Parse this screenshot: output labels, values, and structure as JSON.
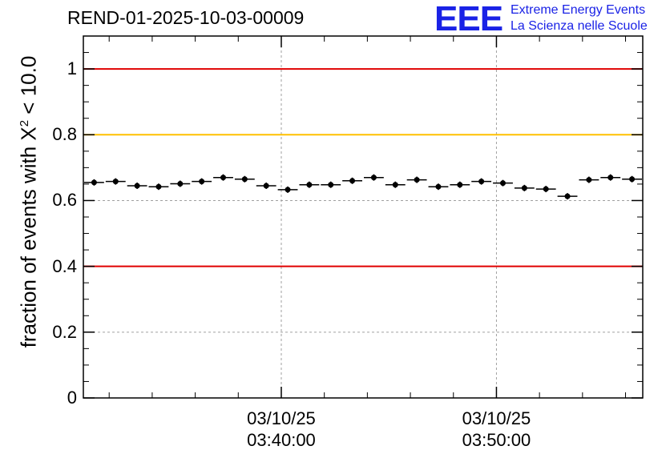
{
  "title": "REND-01-2025-10-03-00009",
  "logo": {
    "letters": "EEE",
    "line1": "Extreme Energy Events",
    "line2": "La Scienza nelle Scuole"
  },
  "colors": {
    "accent_blue": "#1a22e6",
    "red_line": "#e00000",
    "yellow_line": "#ffc000",
    "grid": "#a0a0a0"
  },
  "chart_data": {
    "type": "scatter",
    "title": "REND-01-2025-10-03-00009",
    "ylabel_prefix": "fraction of events with ",
    "ylabel_symbol": "X",
    "ylabel_exponent": "2",
    "ylabel_suffix": " < 10.0",
    "ylim": [
      0,
      1.1
    ],
    "xlim_minutes": [
      0,
      26
    ],
    "grid": true,
    "y_ticks": [
      {
        "value": 0,
        "label": "0"
      },
      {
        "value": 0.2,
        "label": "0.2"
      },
      {
        "value": 0.4,
        "label": "0.4"
      },
      {
        "value": 0.6,
        "label": "0.6"
      },
      {
        "value": 0.8,
        "label": "0.8"
      },
      {
        "value": 1,
        "label": "1"
      }
    ],
    "x_ticks": [
      {
        "minute": 9.2,
        "date": "03/10/25",
        "time": "03:40:00"
      },
      {
        "minute": 19.2,
        "date": "03/10/25",
        "time": "03:50:00"
      }
    ],
    "reference_lines": [
      {
        "y": 1.0,
        "color": "#e00000"
      },
      {
        "y": 0.8,
        "color": "#ffc000"
      },
      {
        "y": 0.4,
        "color": "#e00000"
      }
    ],
    "bin_width_minutes": 1,
    "points": [
      {
        "x": 0.5,
        "y": 0.655
      },
      {
        "x": 1.5,
        "y": 0.658
      },
      {
        "x": 2.5,
        "y": 0.645
      },
      {
        "x": 3.5,
        "y": 0.642
      },
      {
        "x": 4.5,
        "y": 0.651
      },
      {
        "x": 5.5,
        "y": 0.658
      },
      {
        "x": 6.5,
        "y": 0.67
      },
      {
        "x": 7.5,
        "y": 0.665
      },
      {
        "x": 8.5,
        "y": 0.645
      },
      {
        "x": 9.5,
        "y": 0.633
      },
      {
        "x": 10.5,
        "y": 0.648
      },
      {
        "x": 11.5,
        "y": 0.648
      },
      {
        "x": 12.5,
        "y": 0.66
      },
      {
        "x": 13.5,
        "y": 0.67
      },
      {
        "x": 14.5,
        "y": 0.648
      },
      {
        "x": 15.5,
        "y": 0.663
      },
      {
        "x": 16.5,
        "y": 0.642
      },
      {
        "x": 17.5,
        "y": 0.648
      },
      {
        "x": 18.5,
        "y": 0.658
      },
      {
        "x": 19.5,
        "y": 0.653
      },
      {
        "x": 20.5,
        "y": 0.638
      },
      {
        "x": 21.5,
        "y": 0.635
      },
      {
        "x": 22.5,
        "y": 0.613
      },
      {
        "x": 23.5,
        "y": 0.663
      },
      {
        "x": 24.5,
        "y": 0.67
      },
      {
        "x": 25.5,
        "y": 0.665
      }
    ]
  }
}
